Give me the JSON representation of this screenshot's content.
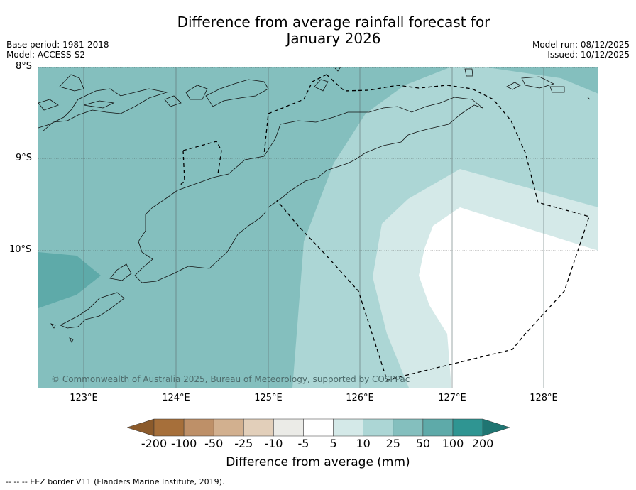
{
  "header": {
    "title_line1": "Difference from average rainfall forecast for",
    "title_line2": "January 2026",
    "base_period": "Base period: 1981-2018",
    "model": "Model: ACCESS-S2",
    "model_run": "Model run: 08/12/2025",
    "issued": "Issued: 10/12/2025"
  },
  "map": {
    "lat_labels": [
      "8°S",
      "9°S",
      "10°S"
    ],
    "lon_labels": [
      "123°E",
      "124°E",
      "125°E",
      "126°E",
      "127°E",
      "128°E"
    ],
    "copyright": "© Commonwealth of Australia 2025, Bureau of Meteorology, supported by COSPPac"
  },
  "colorbar": {
    "ticks": [
      "-200",
      "-100",
      "-50",
      "-25",
      "-10",
      "-5",
      "5",
      "10",
      "25",
      "50",
      "100",
      "200"
    ],
    "colors": [
      "#a66f3a",
      "#be9068",
      "#d2b08f",
      "#e2cfba",
      "#ebebe7",
      "#ffffff",
      "#d4e9e8",
      "#acd6d5",
      "#84bfbe",
      "#5eaaa9",
      "#2f9592"
    ],
    "under_color": "#8b5a2b",
    "over_color": "#1f7572",
    "label": "Difference from average (mm)"
  },
  "footnote": "-- -- -- EEZ border V11 (Flanders Marine Institute, 2019)."
}
